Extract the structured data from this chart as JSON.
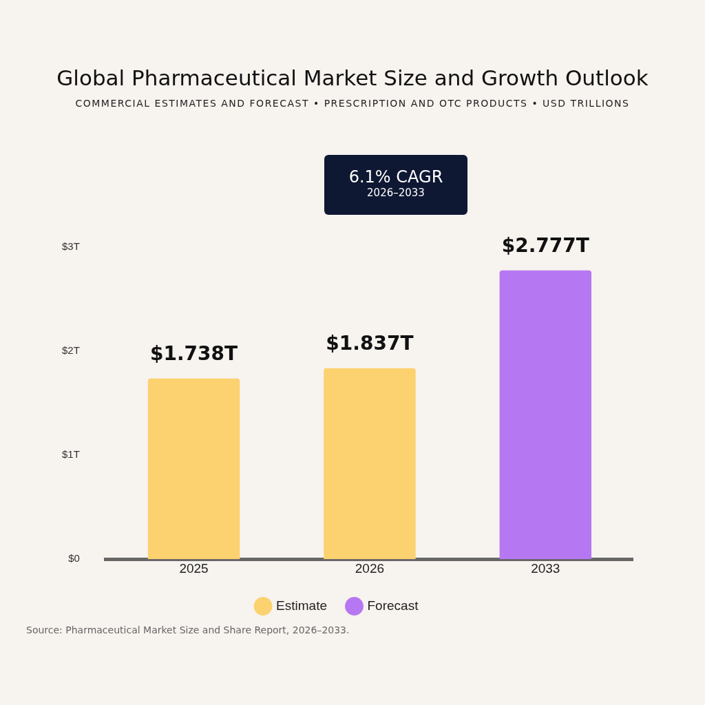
{
  "chart_data": {
    "type": "bar",
    "title": "Global Pharmaceutical Market Size and Growth Outlook",
    "subtitle": "COMMERCIAL ESTIMATES AND FORECAST • PRESCRIPTION AND OTC PRODUCTS • USD TRILLIONS",
    "categories": [
      "2025",
      "2026",
      "2033"
    ],
    "series": [
      {
        "name": "Estimate",
        "color": "#fcd170",
        "values": [
          1.738,
          1.837,
          null
        ],
        "value_labels": [
          "$1.738T",
          "$1.837T",
          null
        ]
      },
      {
        "name": "Forecast",
        "color": "#b678f2",
        "values": [
          null,
          null,
          2.777
        ],
        "value_labels": [
          null,
          null,
          "$2.777T"
        ]
      }
    ],
    "ylim": [
      0,
      3
    ],
    "yticks": [
      {
        "value": 0,
        "label": "$0"
      },
      {
        "value": 1,
        "label": "$1T"
      },
      {
        "value": 2,
        "label": "$2T"
      },
      {
        "value": 3,
        "label": "$3T"
      }
    ],
    "grid": false,
    "legend": "bottom",
    "annotations": [
      "6.1% CAGR",
      "2026–2033",
      "Source: Pharmaceutical Market Size and Share Report, 2026–2033."
    ]
  }
}
